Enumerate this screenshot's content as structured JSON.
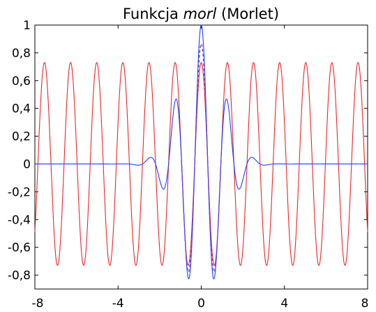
{
  "chart_data": {
    "type": "line",
    "title_pre": "Funkcja ",
    "title_em": "morl",
    "title_post": " (Morlet)",
    "xlim": [
      -8,
      8
    ],
    "ylim": [
      -0.9,
      1
    ],
    "x_ticks": [
      -8,
      -4,
      0,
      4,
      8
    ],
    "x_tick_labels": [
      "-8",
      "-4",
      "0",
      "4",
      "8"
    ],
    "y_ticks": [
      1,
      0.8,
      0.6,
      0.4,
      0.2,
      0,
      -0.2,
      -0.4,
      -0.6,
      -0.8
    ],
    "y_tick_labels": [
      "1",
      "0,8",
      "0,6",
      "0,4",
      "0,2",
      "0",
      "-0,2",
      "-0,4",
      "-0,6",
      "-0,8"
    ],
    "grid": false,
    "series": [
      {
        "function": "0.73*cos(5*x)",
        "x_range": [
          -8,
          8
        ],
        "color": "#e8262c"
      },
      {
        "function": "exp(-x^2/2)*cos(5*x)",
        "x_range": [
          -8,
          8
        ],
        "color": "#1f3fff"
      }
    ],
    "overlap_dash_color": "#7a3fd0"
  }
}
